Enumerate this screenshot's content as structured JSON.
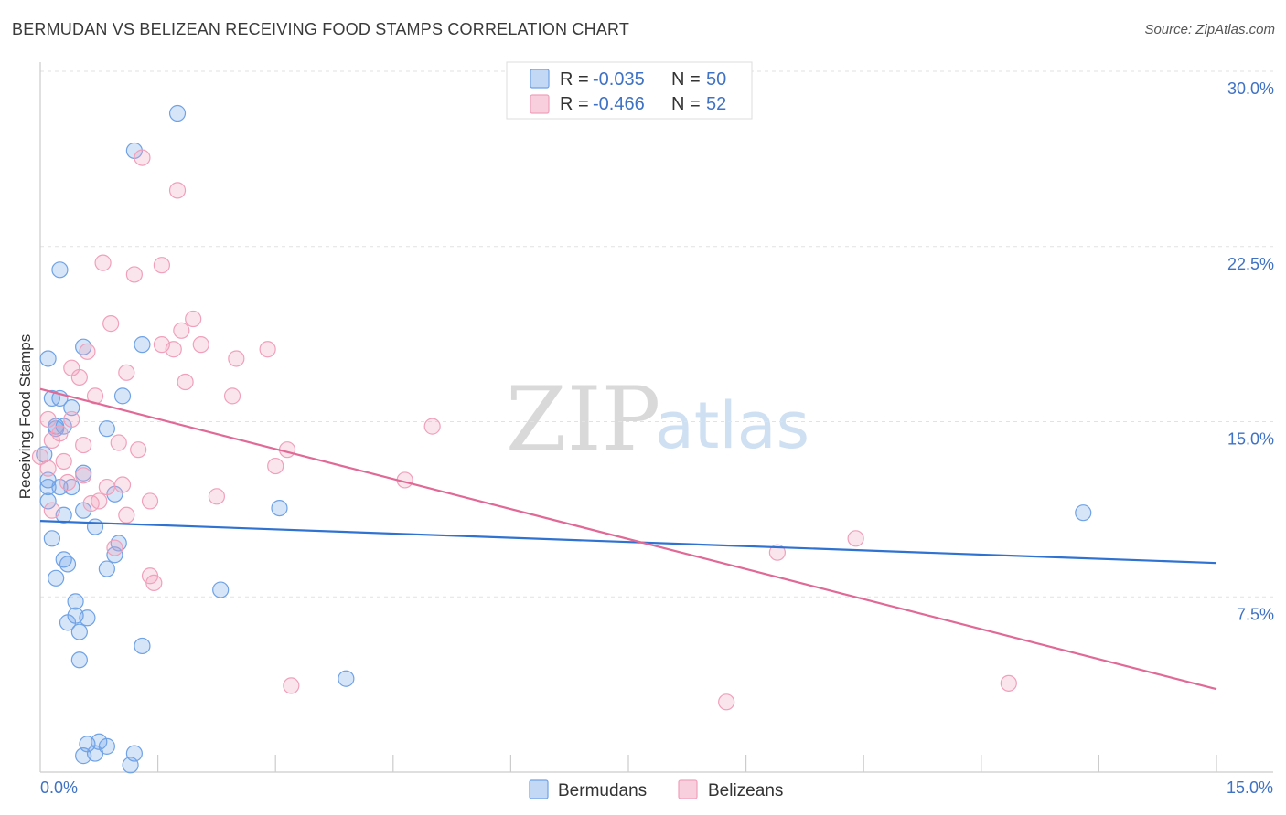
{
  "header": {
    "title": "BERMUDAN VS BELIZEAN RECEIVING FOOD STAMPS CORRELATION CHART",
    "source": "Source: ZipAtlas.com"
  },
  "watermark": {
    "zip": "ZIP",
    "atlas": "atlas"
  },
  "legend_top": [
    {
      "r_label": "R = ",
      "r_value": "-0.035",
      "n_label": "N = ",
      "n_value": "50"
    },
    {
      "r_label": "R = ",
      "r_value": "-0.466",
      "n_label": "N = ",
      "n_value": "52"
    }
  ],
  "legend_bottom": [
    "Bermudans",
    "Belizeans"
  ],
  "chart_data": {
    "type": "scatter",
    "title": "BERMUDAN VS BELIZEAN RECEIVING FOOD STAMPS CORRELATION CHART",
    "xlabel": "",
    "ylabel": "Receiving Food Stamps",
    "xlim": [
      0,
      15
    ],
    "ylim": [
      0,
      30
    ],
    "x_tick_labels": [
      "0.0%",
      "15.0%"
    ],
    "y_ticks": [
      7.5,
      15.0,
      22.5,
      30.0
    ],
    "y_tick_labels": [
      "7.5%",
      "15.0%",
      "22.5%",
      "30.0%"
    ],
    "grid": "horizontal dashed",
    "legend_placement": "top-center",
    "colors": {
      "bermudans": "#6fa2e6",
      "belizeans": "#f0a0bb",
      "bermudans_line": "#2f72d0",
      "belizeans_line": "#e06a95"
    },
    "series": [
      {
        "name": "Bermudans",
        "R": -0.035,
        "N": 50,
        "trend": [
          [
            0,
            10.75
          ],
          [
            15,
            8.95
          ]
        ],
        "points": [
          [
            1.75,
            28.2
          ],
          [
            1.2,
            26.6
          ],
          [
            0.25,
            21.5
          ],
          [
            0.55,
            18.2
          ],
          [
            1.3,
            18.3
          ],
          [
            0.1,
            17.7
          ],
          [
            0.15,
            16.0
          ],
          [
            0.25,
            16.0
          ],
          [
            1.05,
            16.1
          ],
          [
            0.4,
            15.6
          ],
          [
            0.3,
            14.8
          ],
          [
            0.2,
            14.8
          ],
          [
            0.85,
            14.7
          ],
          [
            0.05,
            13.6
          ],
          [
            0.1,
            12.5
          ],
          [
            0.55,
            12.8
          ],
          [
            0.25,
            12.2
          ],
          [
            0.4,
            12.2
          ],
          [
            0.95,
            11.9
          ],
          [
            3.05,
            11.3
          ],
          [
            0.1,
            11.6
          ],
          [
            0.55,
            11.2
          ],
          [
            13.3,
            11.1
          ],
          [
            0.3,
            11.0
          ],
          [
            0.7,
            10.5
          ],
          [
            0.15,
            10.0
          ],
          [
            1.0,
            9.8
          ],
          [
            0.3,
            9.1
          ],
          [
            0.35,
            8.9
          ],
          [
            0.95,
            9.3
          ],
          [
            0.85,
            8.7
          ],
          [
            0.2,
            8.3
          ],
          [
            2.3,
            7.8
          ],
          [
            0.45,
            7.3
          ],
          [
            0.45,
            6.7
          ],
          [
            0.6,
            6.6
          ],
          [
            0.35,
            6.4
          ],
          [
            0.5,
            6.0
          ],
          [
            1.3,
            5.4
          ],
          [
            0.5,
            4.8
          ],
          [
            3.9,
            4.0
          ],
          [
            0.6,
            1.2
          ],
          [
            0.75,
            1.3
          ],
          [
            0.85,
            1.1
          ],
          [
            0.55,
            0.7
          ],
          [
            0.7,
            0.8
          ],
          [
            1.2,
            0.8
          ],
          [
            1.15,
            0.3
          ],
          [
            0.1,
            12.2
          ],
          [
            0.2,
            14.7
          ]
        ]
      },
      {
        "name": "Belizeans",
        "R": -0.466,
        "N": 52,
        "trend": [
          [
            0,
            16.4
          ],
          [
            15,
            3.55
          ]
        ],
        "points": [
          [
            1.3,
            26.3
          ],
          [
            1.75,
            24.9
          ],
          [
            0.8,
            21.8
          ],
          [
            1.55,
            21.7
          ],
          [
            1.2,
            21.3
          ],
          [
            0.9,
            19.2
          ],
          [
            1.95,
            19.4
          ],
          [
            1.8,
            18.9
          ],
          [
            1.55,
            18.3
          ],
          [
            2.05,
            18.3
          ],
          [
            0.6,
            18.0
          ],
          [
            1.7,
            18.1
          ],
          [
            2.9,
            18.1
          ],
          [
            2.5,
            17.7
          ],
          [
            0.4,
            17.3
          ],
          [
            1.1,
            17.1
          ],
          [
            0.5,
            16.9
          ],
          [
            1.85,
            16.7
          ],
          [
            0.7,
            16.1
          ],
          [
            2.45,
            16.1
          ],
          [
            0.1,
            15.1
          ],
          [
            0.4,
            15.1
          ],
          [
            5.0,
            14.8
          ],
          [
            0.25,
            14.5
          ],
          [
            0.15,
            14.2
          ],
          [
            0.55,
            14.0
          ],
          [
            1.0,
            14.1
          ],
          [
            1.25,
            13.8
          ],
          [
            3.15,
            13.8
          ],
          [
            0.3,
            13.3
          ],
          [
            3.0,
            13.1
          ],
          [
            0.1,
            13.0
          ],
          [
            0.55,
            12.7
          ],
          [
            4.65,
            12.5
          ],
          [
            0.35,
            12.4
          ],
          [
            1.05,
            12.3
          ],
          [
            0.85,
            12.2
          ],
          [
            2.25,
            11.8
          ],
          [
            0.75,
            11.6
          ],
          [
            1.4,
            11.6
          ],
          [
            0.65,
            11.5
          ],
          [
            1.1,
            11.0
          ],
          [
            10.4,
            10.0
          ],
          [
            0.95,
            9.6
          ],
          [
            9.4,
            9.4
          ],
          [
            1.4,
            8.4
          ],
          [
            1.45,
            8.1
          ],
          [
            3.2,
            3.7
          ],
          [
            12.35,
            3.8
          ],
          [
            8.75,
            3.0
          ],
          [
            0.0,
            13.5
          ],
          [
            0.15,
            11.2
          ]
        ]
      }
    ]
  }
}
